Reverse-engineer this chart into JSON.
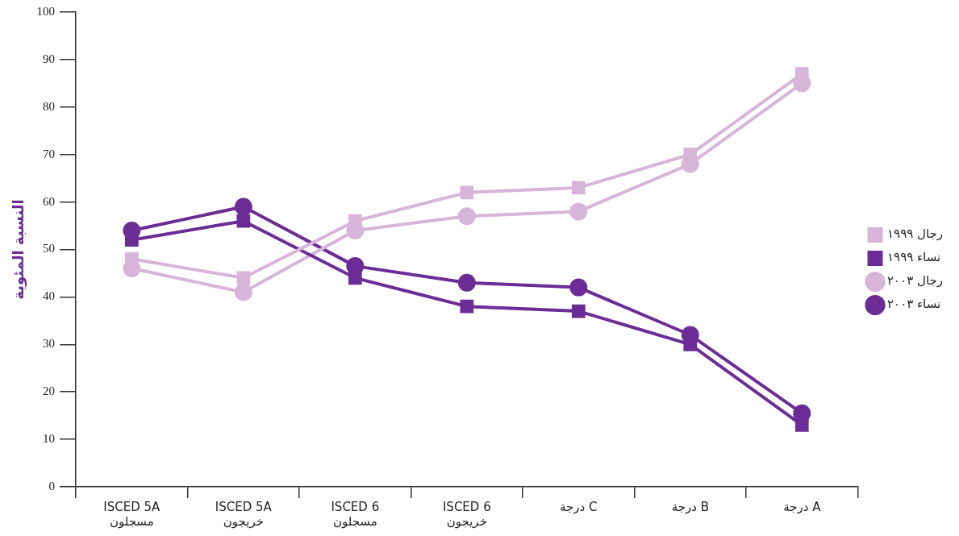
{
  "chart_data": {
    "type": "line",
    "ylabel": "النسبة المئوية",
    "categories": [
      "ISCED 5A\nمسجلون",
      "ISCED 5A\nخريجون",
      "ISCED 6\nمسجلون",
      "ISCED 6\nخريجون",
      "درجة C",
      "درجة B",
      "درجة A"
    ],
    "series": [
      {
        "name": "رجال ١٩٩٩",
        "color": "#d7b5d8",
        "marker": "square",
        "values": [
          48,
          44,
          56,
          62,
          63,
          70,
          87
        ]
      },
      {
        "name": "نساء ١٩٩٩",
        "color": "#6b2c96",
        "marker": "square",
        "values": [
          52,
          56,
          44,
          38,
          37,
          30,
          13
        ]
      },
      {
        "name": "رجال ٢٠٠٣",
        "color": "#d7b5d8",
        "marker": "circle",
        "values": [
          46,
          41,
          54,
          57,
          58,
          68,
          85
        ]
      },
      {
        "name": "نساء ٢٠٠٣",
        "color": "#6b2c96",
        "marker": "circle",
        "values": [
          54,
          59,
          46.5,
          43,
          42,
          32,
          15.5
        ]
      }
    ],
    "ylim": [
      0,
      100
    ],
    "yticks": [
      0,
      10,
      20,
      30,
      40,
      50,
      60,
      70,
      80,
      90,
      100
    ],
    "grid": false,
    "legend": "right",
    "line_style": "solid"
  }
}
